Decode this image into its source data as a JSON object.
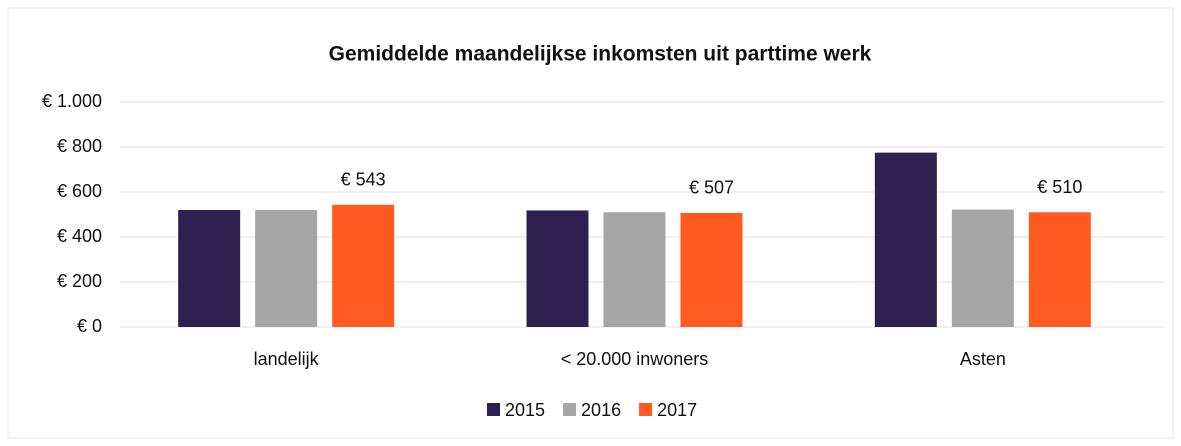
{
  "chart_data": {
    "type": "bar",
    "title": "Gemiddelde maandelijkse inkomsten uit parttime werk",
    "categories": [
      "landelijk",
      "< 20.000 inwoners",
      "Asten"
    ],
    "series": [
      {
        "name": "2015",
        "color": "#2e2150",
        "values": [
          520,
          518,
          775
        ]
      },
      {
        "name": "2016",
        "color": "#a6a6a6",
        "values": [
          520,
          510,
          522
        ]
      },
      {
        "name": "2017",
        "color": "#ff5a1f",
        "values": [
          543,
          507,
          510
        ],
        "value_labels": [
          "€ 543",
          "€ 507",
          "€ 510"
        ]
      }
    ],
    "ylim": [
      0,
      1000
    ],
    "yticks": [
      {
        "value": 0,
        "label": "€ 0"
      },
      {
        "value": 200,
        "label": "€ 200"
      },
      {
        "value": 400,
        "label": "€ 400"
      },
      {
        "value": 600,
        "label": "€ 600"
      },
      {
        "value": 800,
        "label": "€ 800"
      },
      {
        "value": 1000,
        "label": "€ 1.000"
      }
    ],
    "grid": true,
    "legend": "bottom"
  }
}
